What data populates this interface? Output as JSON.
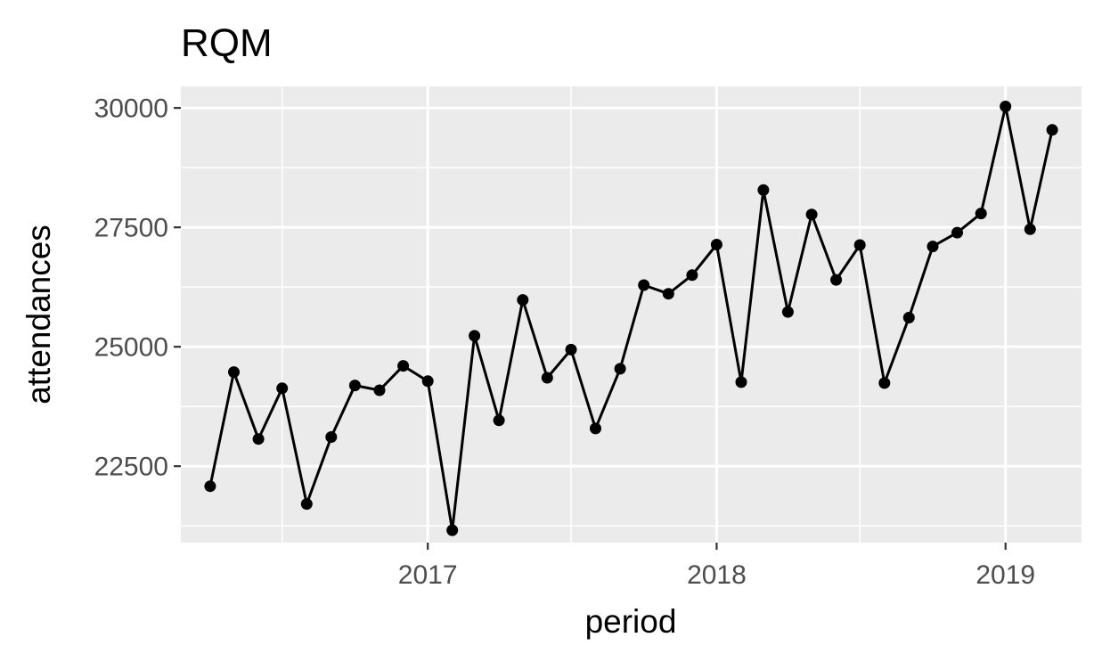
{
  "chart_data": {
    "type": "line",
    "title": "RQM",
    "xlabel": "period",
    "ylabel": "attendances",
    "x": [
      "2016-04",
      "2016-05",
      "2016-06",
      "2016-07",
      "2016-08",
      "2016-09",
      "2016-10",
      "2016-11",
      "2016-12",
      "2017-01",
      "2017-02",
      "2017-03",
      "2017-04",
      "2017-05",
      "2017-06",
      "2017-07",
      "2017-08",
      "2017-09",
      "2017-10",
      "2017-11",
      "2017-12",
      "2018-01",
      "2018-02",
      "2018-03",
      "2018-04",
      "2018-05",
      "2018-06",
      "2018-07",
      "2018-08",
      "2018-09",
      "2018-10",
      "2018-11",
      "2018-12",
      "2019-01",
      "2019-02",
      "2019-03"
    ],
    "series": [
      {
        "values": [
          22080,
          24470,
          23070,
          24130,
          21710,
          23110,
          24190,
          24090,
          24600,
          24280,
          21160,
          25230,
          23460,
          25980,
          24350,
          24940,
          23290,
          24540,
          26290,
          26110,
          26500,
          27140,
          24260,
          28280,
          25730,
          27770,
          26400,
          27130,
          24240,
          25610,
          27100,
          27390,
          27790,
          30030,
          27460,
          29540
        ]
      }
    ],
    "ylim": [
      20900,
      30450
    ],
    "xlim": [
      "2016-02-24",
      "2019-04-07"
    ],
    "yticks": [
      22500,
      25000,
      27500,
      30000
    ],
    "xticks": [
      "2017",
      "2018",
      "2019"
    ],
    "grid": true,
    "background": "#ebebeb",
    "line_color": "#000000",
    "point_color": "#000000"
  }
}
